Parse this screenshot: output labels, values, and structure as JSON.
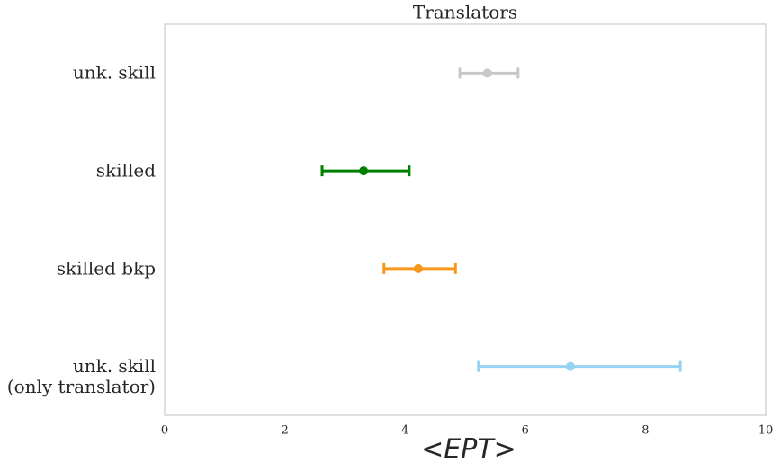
{
  "chart_data": {
    "type": "errorbar",
    "title": "Translators",
    "xlabel": "<EPT>",
    "categories": [
      "unk. skill",
      "skilled",
      "skilled bkp",
      "unk. skill\n(only translator)"
    ],
    "values": [
      5.37,
      3.31,
      4.22,
      6.75
    ],
    "low": [
      4.91,
      2.62,
      3.65,
      5.22
    ],
    "high": [
      5.88,
      4.07,
      4.84,
      8.58
    ],
    "colors": [
      "#c8c8c8",
      "#008000",
      "#f7981d",
      "#94d3f2"
    ],
    "xlim": [
      0,
      10
    ],
    "xticks": [
      0,
      2,
      4,
      6,
      8,
      10
    ],
    "grid": false
  }
}
